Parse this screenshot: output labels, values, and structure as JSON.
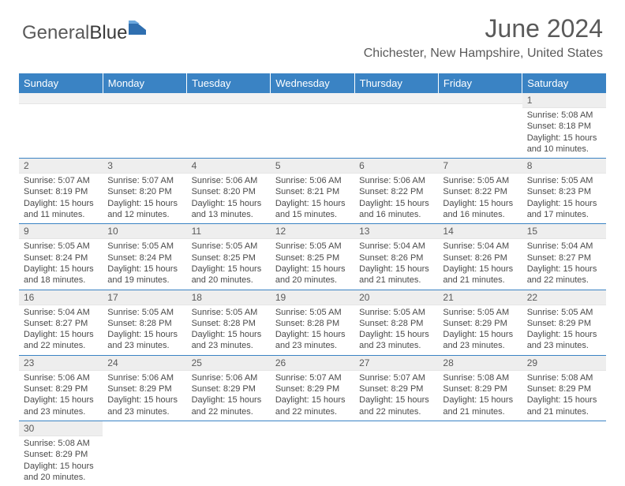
{
  "brand": {
    "part1": "General",
    "part2": "Blue"
  },
  "title": "June 2024",
  "location": "Chichester, New Hampshire, United States",
  "colors": {
    "header_bg": "#3a83c4",
    "header_text": "#ffffff",
    "daynum_bg": "#eeeeee",
    "border": "#3a83c4",
    "text": "#4a4a4a",
    "logo_shape": "#2f6fb0"
  },
  "weekdays": [
    "Sunday",
    "Monday",
    "Tuesday",
    "Wednesday",
    "Thursday",
    "Friday",
    "Saturday"
  ],
  "layout": {
    "first_weekday_index": 6,
    "days_in_month": 30
  },
  "weeks": [
    [
      null,
      null,
      null,
      null,
      null,
      null,
      {
        "n": "1",
        "sr": "Sunrise: 5:08 AM",
        "ss": "Sunset: 8:18 PM",
        "d1": "Daylight: 15 hours",
        "d2": "and 10 minutes."
      }
    ],
    [
      {
        "n": "2",
        "sr": "Sunrise: 5:07 AM",
        "ss": "Sunset: 8:19 PM",
        "d1": "Daylight: 15 hours",
        "d2": "and 11 minutes."
      },
      {
        "n": "3",
        "sr": "Sunrise: 5:07 AM",
        "ss": "Sunset: 8:20 PM",
        "d1": "Daylight: 15 hours",
        "d2": "and 12 minutes."
      },
      {
        "n": "4",
        "sr": "Sunrise: 5:06 AM",
        "ss": "Sunset: 8:20 PM",
        "d1": "Daylight: 15 hours",
        "d2": "and 13 minutes."
      },
      {
        "n": "5",
        "sr": "Sunrise: 5:06 AM",
        "ss": "Sunset: 8:21 PM",
        "d1": "Daylight: 15 hours",
        "d2": "and 15 minutes."
      },
      {
        "n": "6",
        "sr": "Sunrise: 5:06 AM",
        "ss": "Sunset: 8:22 PM",
        "d1": "Daylight: 15 hours",
        "d2": "and 16 minutes."
      },
      {
        "n": "7",
        "sr": "Sunrise: 5:05 AM",
        "ss": "Sunset: 8:22 PM",
        "d1": "Daylight: 15 hours",
        "d2": "and 16 minutes."
      },
      {
        "n": "8",
        "sr": "Sunrise: 5:05 AM",
        "ss": "Sunset: 8:23 PM",
        "d1": "Daylight: 15 hours",
        "d2": "and 17 minutes."
      }
    ],
    [
      {
        "n": "9",
        "sr": "Sunrise: 5:05 AM",
        "ss": "Sunset: 8:24 PM",
        "d1": "Daylight: 15 hours",
        "d2": "and 18 minutes."
      },
      {
        "n": "10",
        "sr": "Sunrise: 5:05 AM",
        "ss": "Sunset: 8:24 PM",
        "d1": "Daylight: 15 hours",
        "d2": "and 19 minutes."
      },
      {
        "n": "11",
        "sr": "Sunrise: 5:05 AM",
        "ss": "Sunset: 8:25 PM",
        "d1": "Daylight: 15 hours",
        "d2": "and 20 minutes."
      },
      {
        "n": "12",
        "sr": "Sunrise: 5:05 AM",
        "ss": "Sunset: 8:25 PM",
        "d1": "Daylight: 15 hours",
        "d2": "and 20 minutes."
      },
      {
        "n": "13",
        "sr": "Sunrise: 5:04 AM",
        "ss": "Sunset: 8:26 PM",
        "d1": "Daylight: 15 hours",
        "d2": "and 21 minutes."
      },
      {
        "n": "14",
        "sr": "Sunrise: 5:04 AM",
        "ss": "Sunset: 8:26 PM",
        "d1": "Daylight: 15 hours",
        "d2": "and 21 minutes."
      },
      {
        "n": "15",
        "sr": "Sunrise: 5:04 AM",
        "ss": "Sunset: 8:27 PM",
        "d1": "Daylight: 15 hours",
        "d2": "and 22 minutes."
      }
    ],
    [
      {
        "n": "16",
        "sr": "Sunrise: 5:04 AM",
        "ss": "Sunset: 8:27 PM",
        "d1": "Daylight: 15 hours",
        "d2": "and 22 minutes."
      },
      {
        "n": "17",
        "sr": "Sunrise: 5:05 AM",
        "ss": "Sunset: 8:28 PM",
        "d1": "Daylight: 15 hours",
        "d2": "and 23 minutes."
      },
      {
        "n": "18",
        "sr": "Sunrise: 5:05 AM",
        "ss": "Sunset: 8:28 PM",
        "d1": "Daylight: 15 hours",
        "d2": "and 23 minutes."
      },
      {
        "n": "19",
        "sr": "Sunrise: 5:05 AM",
        "ss": "Sunset: 8:28 PM",
        "d1": "Daylight: 15 hours",
        "d2": "and 23 minutes."
      },
      {
        "n": "20",
        "sr": "Sunrise: 5:05 AM",
        "ss": "Sunset: 8:28 PM",
        "d1": "Daylight: 15 hours",
        "d2": "and 23 minutes."
      },
      {
        "n": "21",
        "sr": "Sunrise: 5:05 AM",
        "ss": "Sunset: 8:29 PM",
        "d1": "Daylight: 15 hours",
        "d2": "and 23 minutes."
      },
      {
        "n": "22",
        "sr": "Sunrise: 5:05 AM",
        "ss": "Sunset: 8:29 PM",
        "d1": "Daylight: 15 hours",
        "d2": "and 23 minutes."
      }
    ],
    [
      {
        "n": "23",
        "sr": "Sunrise: 5:06 AM",
        "ss": "Sunset: 8:29 PM",
        "d1": "Daylight: 15 hours",
        "d2": "and 23 minutes."
      },
      {
        "n": "24",
        "sr": "Sunrise: 5:06 AM",
        "ss": "Sunset: 8:29 PM",
        "d1": "Daylight: 15 hours",
        "d2": "and 23 minutes."
      },
      {
        "n": "25",
        "sr": "Sunrise: 5:06 AM",
        "ss": "Sunset: 8:29 PM",
        "d1": "Daylight: 15 hours",
        "d2": "and 22 minutes."
      },
      {
        "n": "26",
        "sr": "Sunrise: 5:07 AM",
        "ss": "Sunset: 8:29 PM",
        "d1": "Daylight: 15 hours",
        "d2": "and 22 minutes."
      },
      {
        "n": "27",
        "sr": "Sunrise: 5:07 AM",
        "ss": "Sunset: 8:29 PM",
        "d1": "Daylight: 15 hours",
        "d2": "and 22 minutes."
      },
      {
        "n": "28",
        "sr": "Sunrise: 5:08 AM",
        "ss": "Sunset: 8:29 PM",
        "d1": "Daylight: 15 hours",
        "d2": "and 21 minutes."
      },
      {
        "n": "29",
        "sr": "Sunrise: 5:08 AM",
        "ss": "Sunset: 8:29 PM",
        "d1": "Daylight: 15 hours",
        "d2": "and 21 minutes."
      }
    ],
    [
      {
        "n": "30",
        "sr": "Sunrise: 5:08 AM",
        "ss": "Sunset: 8:29 PM",
        "d1": "Daylight: 15 hours",
        "d2": "and 20 minutes."
      },
      null,
      null,
      null,
      null,
      null,
      null
    ]
  ]
}
